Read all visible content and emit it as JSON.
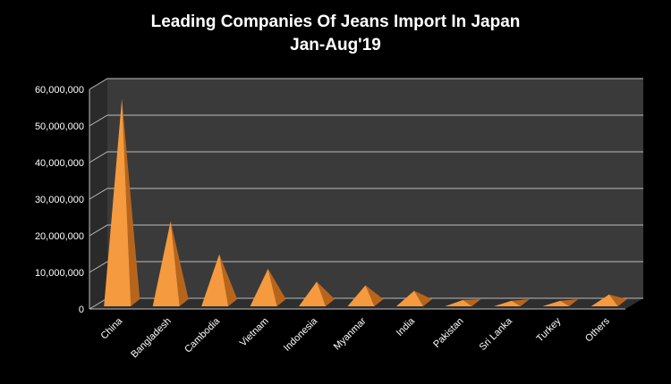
{
  "chart_data": {
    "type": "bar",
    "style": "3d-pyramid",
    "title": "Leading Companies Of Jeans Import In Japan",
    "subtitle": "Jan-Aug'19",
    "categories": [
      "China",
      "Bangladesh",
      "Cambodia",
      "Vietnam",
      "Indonesia",
      "Myanmar",
      "India",
      "Pakistan",
      "Sri Lanka",
      "Turkey",
      "Others"
    ],
    "values": [
      56000000,
      22500000,
      13500000,
      9500000,
      6000000,
      5000000,
      3500000,
      1000000,
      800000,
      800000,
      2500000
    ],
    "ylim": [
      0,
      60000000
    ],
    "yticks": [
      0,
      10000000,
      20000000,
      30000000,
      40000000,
      50000000,
      60000000
    ],
    "ytick_labels": [
      "0",
      "10,000,000",
      "20,000,000",
      "30,000,000",
      "40,000,000",
      "50,000,000",
      "60,000,000"
    ],
    "grid": true,
    "legend": "none",
    "colors": {
      "bar": "#f59a3e",
      "bar_shade": "#b8651c",
      "background": "#000000",
      "plot_wall": "#3a3a3a",
      "gridline": "#bcbcbc",
      "text": "#ffffff"
    }
  }
}
